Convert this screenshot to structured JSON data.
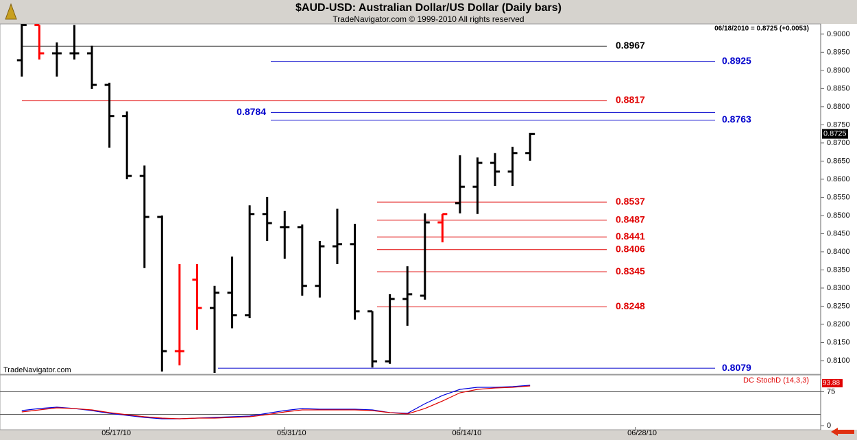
{
  "chart_data": [
    {
      "type": "ohlc",
      "title": "$AUD-USD:  Australian Dollar/US Dollar  (Daily bars)",
      "subtitle": "TradeNavigator.com © 1999-2010 All rights reserved",
      "header": "06/18/2010 = 0.8725 (+0.0053)",
      "watermark": "TradeNavigator.com",
      "xlim": [
        -0.5,
        45.5
      ],
      "xticks": [
        {
          "value": 5,
          "label": "05/17/10"
        },
        {
          "value": 15,
          "label": "05/31/10"
        },
        {
          "value": 25,
          "label": "06/14/10"
        },
        {
          "value": 35,
          "label": "06/28/10"
        }
      ],
      "ylim": [
        0.8066,
        0.9028
      ],
      "yticks": [
        {
          "value": 0.9,
          "label": "0.9000"
        },
        {
          "value": 0.895,
          "label": "0.8950"
        },
        {
          "value": 0.89,
          "label": "0.8900"
        },
        {
          "value": 0.885,
          "label": "0.8850"
        },
        {
          "value": 0.88,
          "label": "0.8800"
        },
        {
          "value": 0.875,
          "label": "0.8750"
        },
        {
          "value": 0.87,
          "label": "0.8700"
        },
        {
          "value": 0.865,
          "label": "0.8650"
        },
        {
          "value": 0.86,
          "label": "0.8600"
        },
        {
          "value": 0.855,
          "label": "0.8550"
        },
        {
          "value": 0.85,
          "label": "0.8500"
        },
        {
          "value": 0.845,
          "label": "0.8450"
        },
        {
          "value": 0.84,
          "label": "0.8400"
        },
        {
          "value": 0.835,
          "label": "0.8350"
        },
        {
          "value": 0.83,
          "label": "0.8300"
        },
        {
          "value": 0.825,
          "label": "0.8250"
        },
        {
          "value": 0.82,
          "label": "0.8200"
        },
        {
          "value": 0.815,
          "label": "0.8150"
        },
        {
          "value": 0.81,
          "label": "0.8100"
        }
      ],
      "open": [
        0.8928,
        0.9025,
        0.8947,
        0.8947,
        0.8947,
        0.886,
        0.8774,
        0.8609,
        0.8496,
        0.8126,
        0.8323,
        0.8245,
        0.8287,
        0.8225,
        0.8504,
        0.8468,
        0.8468,
        0.8306,
        0.8415,
        0.8421,
        0.8236,
        0.8098,
        0.827,
        0.8279,
        0.8481,
        0.8534,
        0.8579,
        0.8645,
        0.8621,
        0.8672
      ],
      "high": [
        0.9028,
        0.9025,
        0.8977,
        0.9025,
        0.8968,
        0.8866,
        0.8787,
        0.8638,
        0.85,
        0.8366,
        0.8366,
        0.8306,
        0.8387,
        0.8528,
        0.8551,
        0.8513,
        0.8475,
        0.843,
        0.8519,
        0.8477,
        0.8236,
        0.8283,
        0.836,
        0.8506,
        0.8504,
        0.8666,
        0.866,
        0.8672,
        0.8689,
        0.8728
      ],
      "low": [
        0.8883,
        0.893,
        0.8883,
        0.893,
        0.8849,
        0.8687,
        0.86,
        0.8355,
        0.807,
        0.8087,
        0.8185,
        0.8066,
        0.8189,
        0.8217,
        0.843,
        0.8381,
        0.8279,
        0.8274,
        0.8366,
        0.8213,
        0.8081,
        0.8091,
        0.8196,
        0.8268,
        0.8426,
        0.8506,
        0.8504,
        0.8581,
        0.8581,
        0.8651
      ],
      "close": [
        0.9025,
        0.8947,
        0.8947,
        0.8947,
        0.886,
        0.8774,
        0.8609,
        0.8496,
        0.8126,
        0.8126,
        0.8245,
        0.8287,
        0.8225,
        0.8504,
        0.8479,
        0.8468,
        0.8306,
        0.8415,
        0.8421,
        0.8236,
        0.8098,
        0.827,
        0.8283,
        0.8481,
        0.8504,
        0.8579,
        0.8645,
        0.8621,
        0.8672,
        0.8725
      ],
      "colors": [
        "#000000",
        "#ff0000",
        "#000000",
        "#000000",
        "#000000",
        "#000000",
        "#000000",
        "#000000",
        "#000000",
        "#ff0000",
        "#ff0000",
        "#000000",
        "#000000",
        "#000000",
        "#000000",
        "#000000",
        "#000000",
        "#000000",
        "#000000",
        "#000000",
        "#000000",
        "#000000",
        "#000000",
        "#000000",
        "#ff0000",
        "#000000",
        "#000000",
        "#000000",
        "#000000",
        "#000000"
      ],
      "last_price": 0.8725,
      "levels": [
        {
          "value": 0.8967,
          "color": "#000000"
        },
        {
          "value": 0.8925,
          "color": "#0000cc"
        },
        {
          "value": 0.8817,
          "color": "#e00000"
        },
        {
          "value": 0.8784,
          "color": "#0000cc"
        },
        {
          "value": 0.8763,
          "color": "#0000cc"
        },
        {
          "value": 0.8537,
          "color": "#e00000"
        },
        {
          "value": 0.8487,
          "color": "#e00000"
        },
        {
          "value": 0.8441,
          "color": "#e00000"
        },
        {
          "value": 0.8406,
          "color": "#e00000"
        },
        {
          "value": 0.8345,
          "color": "#e00000"
        },
        {
          "value": 0.8248,
          "color": "#e00000"
        },
        {
          "value": 0.8079,
          "color": "#0000cc"
        }
      ]
    },
    {
      "type": "line",
      "title": "DC StochD (14,3,3)",
      "ylim": [
        0,
        100
      ],
      "yticks": [
        0,
        75
      ],
      "levels": [
        25,
        75
      ],
      "last_value": 93.88,
      "series": [
        {
          "color": "#0000dd",
          "values": [
            33.3,
            37.9,
            40.9,
            37.9,
            33.3,
            27.3,
            22.7,
            18.2,
            15.2,
            15.2,
            16.7,
            18.2,
            19.7,
            21.2,
            27.3,
            33.3,
            37.9,
            36.4,
            36.4,
            36.4,
            34.8,
            28.8,
            27.3,
            48.5,
            66.7,
            80.3,
            84.8,
            84.8,
            86.4,
            89.4
          ]
        },
        {
          "color": "#dd0000",
          "values": [
            30.3,
            34.8,
            39.4,
            37.9,
            34.8,
            28.8,
            24.2,
            19.7,
            16.7,
            15.2,
            16.7,
            16.7,
            18.2,
            19.7,
            24.2,
            30.3,
            34.8,
            34.8,
            34.8,
            34.8,
            33.3,
            28.8,
            25.8,
            37.9,
            54.5,
            72.7,
            80.3,
            83.3,
            84.8,
            87.9
          ]
        }
      ]
    }
  ]
}
